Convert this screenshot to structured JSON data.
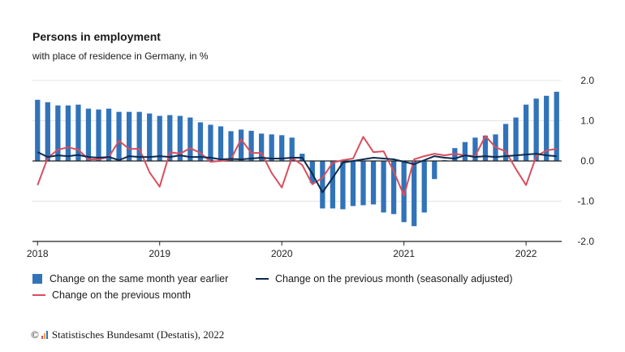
{
  "header": {
    "title": "Persons in employment",
    "subtitle": "with place of residence in Germany, in %"
  },
  "legend": {
    "bar_label": "Change on the same month year earlier",
    "line_sa_label": "Change on the previous month (seasonally adjusted)",
    "line_label": "Change on the previous month"
  },
  "source": {
    "copyright": "©",
    "text": "Statistisches Bundesamt (Destatis), 2022"
  },
  "colors": {
    "bar": "#3173b9",
    "line_sa": "#0d2a4d",
    "line": "#d94e5d",
    "grid": "#e3e3e3",
    "axis": "#222222"
  },
  "chart_data": {
    "type": "bar",
    "x": [
      "2018-01",
      "2018-02",
      "2018-03",
      "2018-04",
      "2018-05",
      "2018-06",
      "2018-07",
      "2018-08",
      "2018-09",
      "2018-10",
      "2018-11",
      "2018-12",
      "2019-01",
      "2019-02",
      "2019-03",
      "2019-04",
      "2019-05",
      "2019-06",
      "2019-07",
      "2019-08",
      "2019-09",
      "2019-10",
      "2019-11",
      "2019-12",
      "2020-01",
      "2020-02",
      "2020-03",
      "2020-04",
      "2020-05",
      "2020-06",
      "2020-07",
      "2020-08",
      "2020-09",
      "2020-10",
      "2020-11",
      "2020-12",
      "2021-01",
      "2021-02",
      "2021-03",
      "2021-04",
      "2021-05",
      "2021-06",
      "2021-07",
      "2021-08",
      "2021-09",
      "2021-10",
      "2021-11",
      "2021-12",
      "2022-01",
      "2022-02",
      "2022-03",
      "2022-04"
    ],
    "x_tick_labels": [
      "2018",
      "2019",
      "2020",
      "2021",
      "2022"
    ],
    "y_ticks": [
      "2.0",
      "1.0",
      "0.0",
      "-1.0",
      "-2.0"
    ],
    "ylim": [
      -2.0,
      2.0
    ],
    "grid": true,
    "y_axis_position": "right",
    "legend_position": "bottom",
    "series": [
      {
        "name": "Change on the same month year earlier",
        "type": "bar",
        "values": [
          1.52,
          1.46,
          1.38,
          1.38,
          1.4,
          1.3,
          1.28,
          1.3,
          1.22,
          1.22,
          1.22,
          1.18,
          1.12,
          1.14,
          1.12,
          1.08,
          0.96,
          0.9,
          0.86,
          0.74,
          0.78,
          0.75,
          0.68,
          0.66,
          0.64,
          0.58,
          0.18,
          -0.55,
          -1.18,
          -1.18,
          -1.2,
          -1.12,
          -1.1,
          -1.08,
          -1.28,
          -1.32,
          -1.52,
          -1.62,
          -1.28,
          -0.45,
          0.02,
          0.32,
          0.47,
          0.58,
          0.63,
          0.66,
          0.92,
          1.08,
          1.4,
          1.55,
          1.62,
          1.72
        ]
      },
      {
        "name": "Change on the previous month (seasonally adjusted)",
        "type": "line",
        "values": [
          0.22,
          0.1,
          0.14,
          0.12,
          0.15,
          0.1,
          0.08,
          0.1,
          0.02,
          0.12,
          0.1,
          0.1,
          0.12,
          0.1,
          0.14,
          0.1,
          0.1,
          0.08,
          0.04,
          0.05,
          0.04,
          0.06,
          0.08,
          0.06,
          0.06,
          0.08,
          0.08,
          -0.32,
          -0.78,
          -0.42,
          -0.04,
          0.0,
          0.04,
          0.08,
          0.06,
          0.04,
          -0.02,
          -0.08,
          0.02,
          0.12,
          0.08,
          0.06,
          0.14,
          0.1,
          0.12,
          0.1,
          0.12,
          0.14,
          0.16,
          0.18,
          0.14,
          0.12
        ]
      },
      {
        "name": "Change on the previous month",
        "type": "line",
        "values": [
          -0.6,
          0.08,
          0.28,
          0.34,
          0.28,
          0.04,
          0.04,
          0.1,
          0.5,
          0.3,
          0.3,
          -0.28,
          -0.64,
          0.22,
          0.18,
          0.32,
          0.2,
          -0.02,
          0.0,
          0.04,
          0.54,
          0.2,
          0.2,
          -0.3,
          -0.66,
          0.08,
          -0.1,
          -0.58,
          -0.42,
          -0.04,
          0.02,
          0.06,
          0.6,
          0.22,
          0.24,
          -0.26,
          -0.86,
          0.04,
          0.12,
          0.18,
          0.14,
          0.18,
          0.14,
          0.12,
          0.62,
          0.34,
          0.24,
          -0.2,
          -0.6,
          0.12,
          0.26,
          0.3
        ]
      }
    ]
  }
}
